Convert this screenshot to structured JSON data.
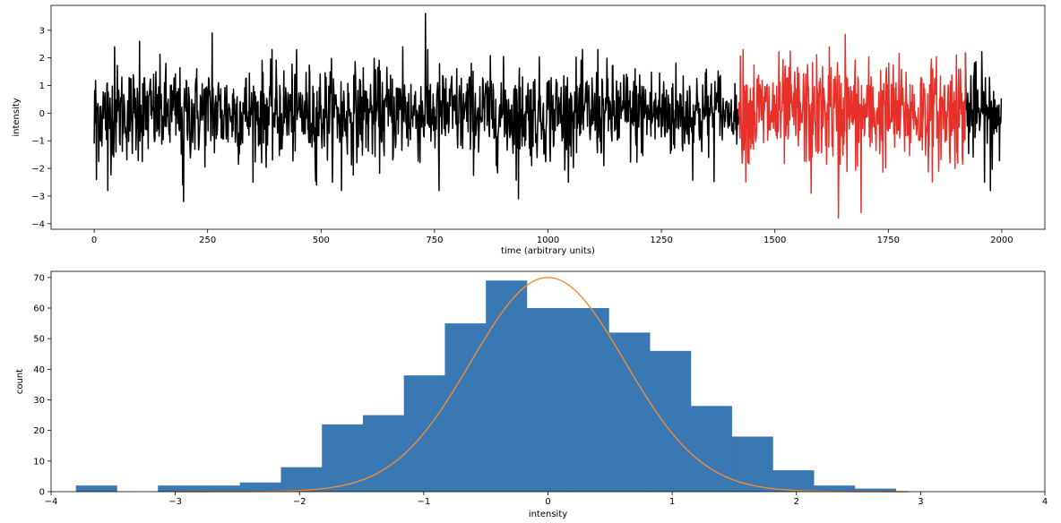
{
  "chart_data": [
    {
      "type": "line",
      "xlabel": "time (arbitrary units)",
      "ylabel": "intensity",
      "xlim": [
        -95,
        2095
      ],
      "ylim": [
        -4.2,
        3.9
      ],
      "xticks": [
        0,
        250,
        500,
        750,
        1000,
        1250,
        1500,
        1750,
        2000
      ],
      "xtick_labels": [
        "0",
        "250",
        "500",
        "750",
        "1000",
        "1250",
        "1500",
        "1750",
        "2000"
      ],
      "yticks": [
        -4,
        -3,
        -2,
        -1,
        0,
        1,
        2,
        3
      ],
      "ytick_labels": [
        "−4",
        "−3",
        "−2",
        "−1",
        "0",
        "1",
        "2",
        "3"
      ],
      "n_points": 2000,
      "highlight_range": [
        1420,
        1920
      ],
      "colors": {
        "base": "#000000",
        "highlight": "#e8302a"
      },
      "grid": false,
      "notable_points": [
        {
          "x": 0,
          "y": -1.1
        },
        {
          "x": 5,
          "y": -2.4
        },
        {
          "x": 30,
          "y": -2.8
        },
        {
          "x": 45,
          "y": 2.4
        },
        {
          "x": 100,
          "y": 2.6
        },
        {
          "x": 195,
          "y": -2.6
        },
        {
          "x": 197,
          "y": -3.2
        },
        {
          "x": 260,
          "y": 2.9
        },
        {
          "x": 490,
          "y": -2.6
        },
        {
          "x": 545,
          "y": -2.8
        },
        {
          "x": 680,
          "y": 2.4
        },
        {
          "x": 730,
          "y": 3.6
        },
        {
          "x": 760,
          "y": -2.8
        },
        {
          "x": 935,
          "y": -3.1
        },
        {
          "x": 1110,
          "y": 2.3
        },
        {
          "x": 1430,
          "y": 2.3
        },
        {
          "x": 1580,
          "y": -2.9
        },
        {
          "x": 1620,
          "y": 2.4
        },
        {
          "x": 1640,
          "y": -3.8
        },
        {
          "x": 1655,
          "y": 2.85
        },
        {
          "x": 1690,
          "y": -3.6
        },
        {
          "x": 1900,
          "y": 2.1
        },
        {
          "x": 1920,
          "y": 2.2
        },
        {
          "x": 1975,
          "y": -2.8
        }
      ]
    },
    {
      "type": "bar",
      "subtype": "histogram",
      "xlabel": "intensity",
      "ylabel": "count",
      "xlim": [
        -4,
        4
      ],
      "ylim": [
        0,
        72
      ],
      "xticks": [
        -4,
        -3,
        -2,
        -1,
        0,
        1,
        2,
        3,
        4
      ],
      "xtick_labels": [
        "−4",
        "−3",
        "−2",
        "−1",
        "0",
        "1",
        "2",
        "3",
        "4"
      ],
      "yticks": [
        0,
        10,
        20,
        30,
        40,
        50,
        60,
        70
      ],
      "ytick_labels": [
        "0",
        "10",
        "20",
        "30",
        "40",
        "50",
        "60",
        "70"
      ],
      "bin_edges": [
        -3.8,
        -3.47,
        -3.14,
        -2.81,
        -2.48,
        -2.15,
        -1.82,
        -1.49,
        -1.16,
        -0.83,
        -0.5,
        -0.17,
        0.16,
        0.49,
        0.82,
        1.15,
        1.48,
        1.81,
        2.14,
        2.47,
        2.8
      ],
      "counts": [
        2,
        0,
        2,
        2,
        3,
        8,
        22,
        25,
        38,
        55,
        69,
        60,
        60,
        52,
        46,
        28,
        18,
        7,
        2,
        1
      ],
      "bar_color": "#3a78b4",
      "fit_curve": {
        "type": "gaussian",
        "amplitude": 70,
        "mean": 0,
        "sigma": 0.62,
        "x_range": [
          -3.0,
          2.9
        ],
        "color": "#f08c32"
      },
      "grid": false
    }
  ]
}
